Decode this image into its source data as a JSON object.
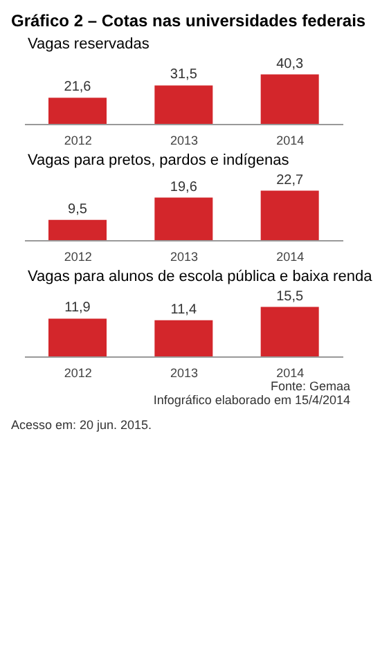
{
  "chart_data": [
    {
      "type": "bar",
      "title": "Gráfico 2 – Cotas nas universidades federais",
      "subtitle": "Vagas reservadas",
      "categories": [
        "2012",
        "2013",
        "2014"
      ],
      "values": [
        21.6,
        31.5,
        40.3
      ],
      "value_labels": [
        "21,6",
        "31,5",
        "40,3"
      ],
      "color": "#d3262b",
      "grid": false
    },
    {
      "type": "bar",
      "subtitle": "Vagas para pretos, pardos e indígenas",
      "categories": [
        "2012",
        "2013",
        "2014"
      ],
      "values": [
        9.5,
        19.6,
        22.7
      ],
      "value_labels": [
        "9,5",
        "19,6",
        "22,7"
      ],
      "color": "#d3262b",
      "grid": false
    },
    {
      "type": "bar",
      "subtitle": "Vagas para alunos de escola pública e baixa renda",
      "categories": [
        "2012",
        "2013",
        "2014"
      ],
      "values": [
        11.9,
        11.4,
        15.5
      ],
      "value_labels": [
        "11,9",
        "11,4",
        "15,5"
      ],
      "color": "#d3262b",
      "grid": false,
      "annotations": [
        "Fonte: Gemaa",
        "Infográfico elaborado em 15/4/2014",
        "Acesso em: 20 jun. 2015."
      ]
    }
  ]
}
